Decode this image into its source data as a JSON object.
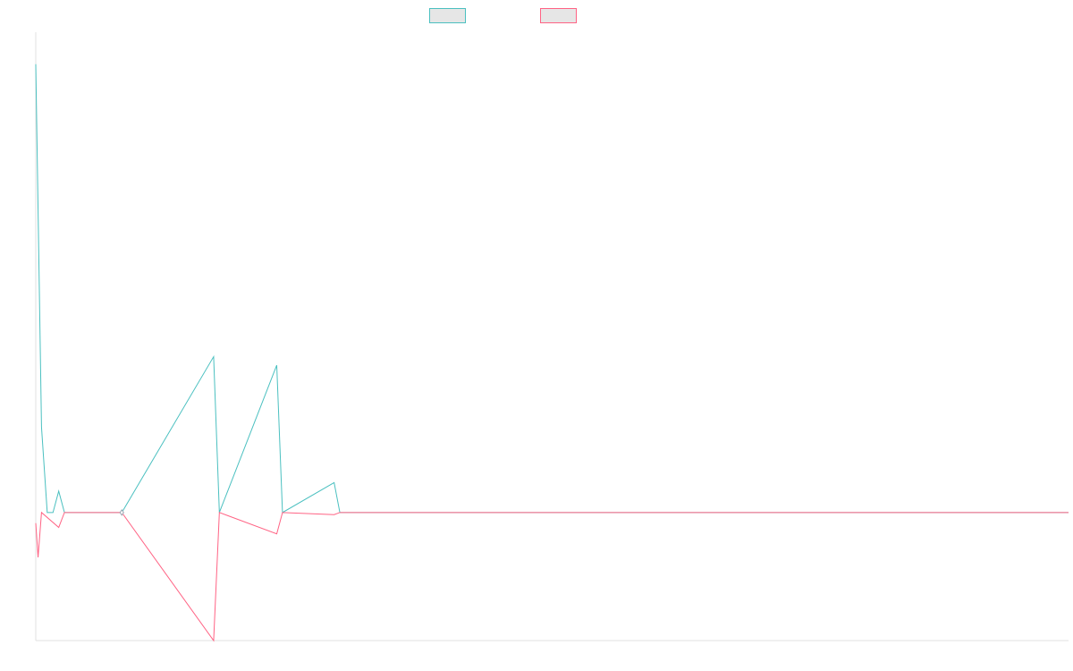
{
  "chart_data": {
    "type": "line",
    "title": "",
    "xlabel": "",
    "ylabel": "",
    "grid": false,
    "legend_position": "top",
    "x_count": 180,
    "xlim": [
      0,
      180
    ],
    "ylim": [
      -0.6,
      2.25
    ],
    "series": [
      {
        "color": "#4bc0c0",
        "fill": "#e6e6e6",
        "points": [
          [
            0,
            2.1
          ],
          [
            1,
            0.4
          ],
          [
            2,
            0.0
          ],
          [
            3,
            0.0
          ],
          [
            4,
            0.1
          ],
          [
            5,
            0.0
          ],
          [
            15,
            0.0
          ],
          [
            31,
            0.73
          ],
          [
            32,
            0.0
          ],
          [
            42,
            0.69
          ],
          [
            43,
            0.0
          ],
          [
            52,
            0.14
          ],
          [
            53,
            0.0
          ],
          [
            180,
            0.0
          ]
        ]
      },
      {
        "color": "#ff6384",
        "fill": "#e6e6e6",
        "points": [
          [
            0,
            -0.05
          ],
          [
            0.4,
            -0.21
          ],
          [
            1,
            0.0
          ],
          [
            4,
            -0.07
          ],
          [
            5,
            0.0
          ],
          [
            15,
            0.0
          ],
          [
            31,
            -0.6
          ],
          [
            32,
            0.0
          ],
          [
            42,
            -0.1
          ],
          [
            43,
            0.0
          ],
          [
            52,
            -0.01
          ],
          [
            53,
            0.0
          ],
          [
            180,
            0.0
          ]
        ]
      }
    ]
  }
}
